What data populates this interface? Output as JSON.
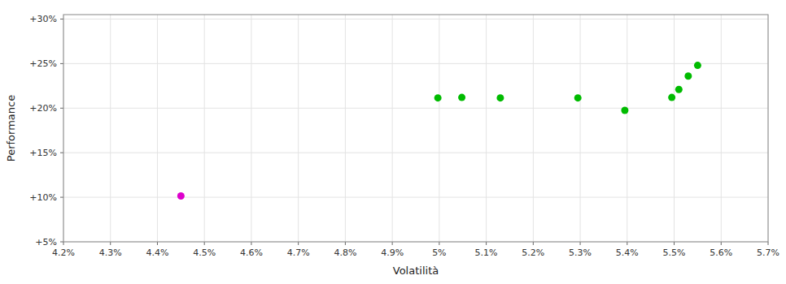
{
  "chart_data": {
    "type": "scatter",
    "xlabel": "Volatilità",
    "ylabel": "Performance",
    "xlim": [
      0.042,
      0.057
    ],
    "ylim": [
      0.05,
      0.305
    ],
    "xticks": [
      {
        "value": 0.042,
        "label": "4.2%"
      },
      {
        "value": 0.043,
        "label": "4.3%"
      },
      {
        "value": 0.044,
        "label": "4.4%"
      },
      {
        "value": 0.045,
        "label": "4.5%"
      },
      {
        "value": 0.046,
        "label": "4.6%"
      },
      {
        "value": 0.047,
        "label": "4.7%"
      },
      {
        "value": 0.048,
        "label": "4.8%"
      },
      {
        "value": 0.049,
        "label": "4.9%"
      },
      {
        "value": 0.05,
        "label": "5%"
      },
      {
        "value": 0.051,
        "label": "5.1%"
      },
      {
        "value": 0.052,
        "label": "5.2%"
      },
      {
        "value": 0.053,
        "label": "5.3%"
      },
      {
        "value": 0.054,
        "label": "5.4%"
      },
      {
        "value": 0.055,
        "label": "5.5%"
      },
      {
        "value": 0.056,
        "label": "5.6%"
      },
      {
        "value": 0.057,
        "label": "5.7%"
      }
    ],
    "yticks": [
      {
        "value": 0.05,
        "label": "+5%"
      },
      {
        "value": 0.1,
        "label": "+10%"
      },
      {
        "value": 0.15,
        "label": "+15%"
      },
      {
        "value": 0.2,
        "label": "+20%"
      },
      {
        "value": 0.25,
        "label": "+25%"
      },
      {
        "value": 0.3,
        "label": "+30%"
      }
    ],
    "grid": true,
    "series": [
      {
        "color": "#00bb00",
        "x": [
          0.04997,
          0.05048,
          0.0513,
          0.05295,
          0.05395,
          0.05495,
          0.0551,
          0.0553,
          0.0555
        ],
        "values": [
          0.2115,
          0.212,
          0.2115,
          0.2115,
          0.1975,
          0.212,
          0.221,
          0.236,
          0.248
        ]
      },
      {
        "color": "#dd00cc",
        "x": [
          0.0445
        ],
        "values": [
          0.1015
        ]
      }
    ]
  }
}
